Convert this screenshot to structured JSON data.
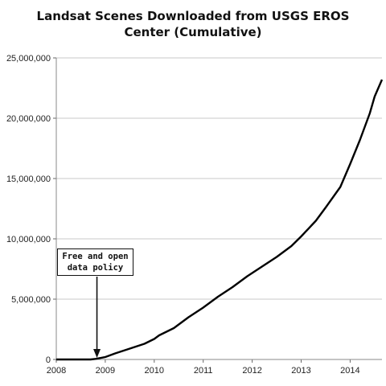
{
  "chart_data": {
    "type": "line",
    "title_line1": "Landsat Scenes Downloaded from USGS EROS",
    "title_line2": "Center  (Cumulative)",
    "xlabel": "",
    "ylabel": "",
    "xlim": [
      2008,
      2014.65
    ],
    "ylim": [
      0,
      25000000
    ],
    "x_ticks": [
      2008,
      2009,
      2010,
      2011,
      2012,
      2013,
      2014
    ],
    "x_tick_labels": [
      "2008",
      "2009",
      "2010",
      "2011",
      "2012",
      "2013",
      "2014"
    ],
    "y_ticks": [
      0,
      5000000,
      10000000,
      15000000,
      20000000,
      25000000
    ],
    "y_tick_labels": [
      "0",
      "5,000,000",
      "10,000,000",
      "15,000,000",
      "20,000,000",
      "25,000,000"
    ],
    "grid": "horizontal",
    "series": [
      {
        "color": "#000000",
        "x": [
          2008.0,
          2008.7,
          2008.8,
          2009.0,
          2009.2,
          2009.5,
          2009.8,
          2010.0,
          2010.1,
          2010.4,
          2010.7,
          2011.0,
          2011.3,
          2011.6,
          2011.9,
          2012.2,
          2012.5,
          2012.8,
          2013.0,
          2013.3,
          2013.5,
          2013.8,
          2014.0,
          2014.2,
          2014.4,
          2014.5,
          2014.65
        ],
        "y": [
          0,
          0,
          50000,
          200000,
          500000,
          900000,
          1300000,
          1700000,
          2000000,
          2600000,
          3500000,
          4300000,
          5200000,
          6000000,
          6900000,
          7700000,
          8500000,
          9400000,
          10200000,
          11500000,
          12600000,
          14300000,
          16200000,
          18200000,
          20400000,
          21800000,
          23200000
        ]
      }
    ],
    "annotation": {
      "line1": "Free and open",
      "line2": "data policy",
      "x": 2008.83,
      "y": 0
    }
  }
}
